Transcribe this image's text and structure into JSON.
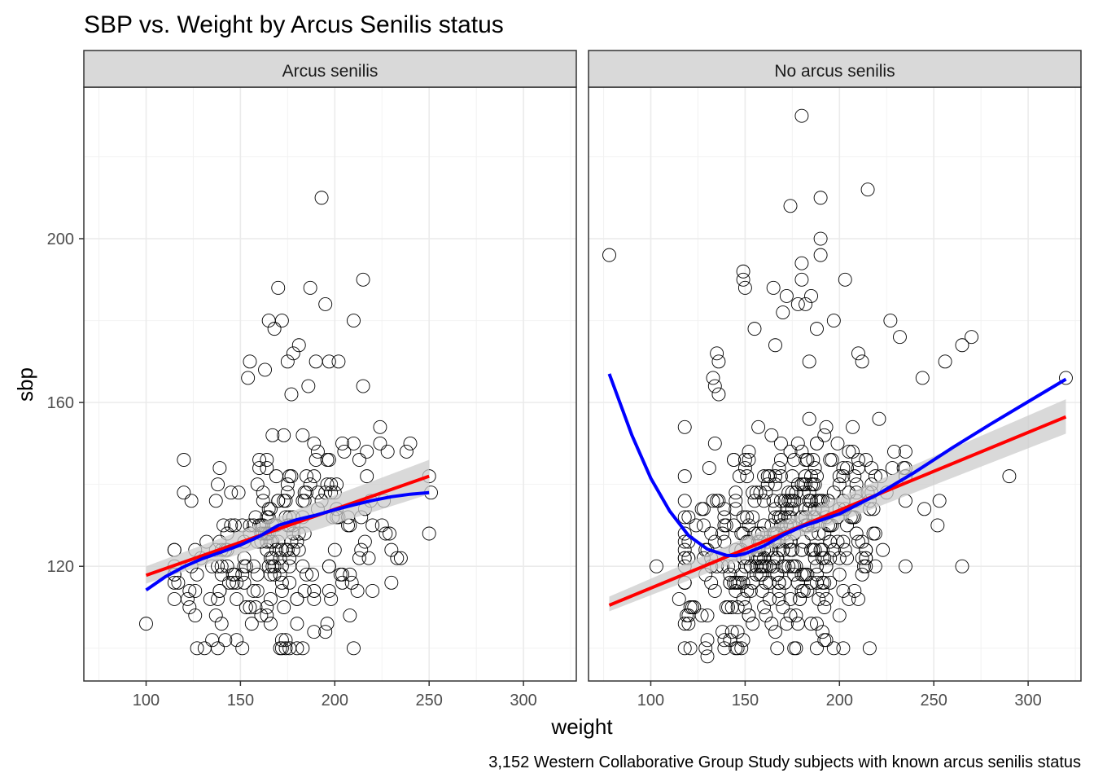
{
  "chart_data": {
    "type": "scatter",
    "title": "SBP vs. Weight by Arcus Senilis status",
    "caption": "3,152 Western Collaborative Group Study subjects with known arcus senilis status",
    "xlabel": "weight",
    "ylabel": "sbp",
    "xlim": [
      67,
      328
    ],
    "ylim": [
      92,
      237
    ],
    "x_ticks": [
      100,
      150,
      200,
      250,
      300
    ],
    "y_ticks": [
      120,
      160,
      200
    ],
    "grid": true,
    "theme": "bw",
    "colors": {
      "lm_line": "#ff0000",
      "loess_line": "#0000ff",
      "confidence_band": "#cccccc",
      "points": "#000000",
      "strip_fill": "#d9d9d9"
    },
    "facets": [
      {
        "label": "Arcus senilis",
        "lm_fit": {
          "x": [
            100,
            250
          ],
          "y": [
            117.8,
            142.0
          ],
          "se_lower": [
            115.8,
            137.6
          ],
          "se_upper": [
            120.0,
            146.0
          ]
        },
        "loess_fit": {
          "x": [
            100,
            110,
            120,
            130,
            140,
            150,
            160,
            170,
            180,
            190,
            200,
            210,
            220,
            230,
            240,
            250
          ],
          "y": [
            114.2,
            117.4,
            119.9,
            121.9,
            123.5,
            125.2,
            127.3,
            130.0,
            131.4,
            132.5,
            133.8,
            135.0,
            136.1,
            137.0,
            137.6,
            138.0
          ]
        },
        "outliers": [
          [
            193,
            210
          ],
          [
            170,
            188
          ],
          [
            187,
            188
          ],
          [
            215,
            190
          ],
          [
            195,
            184
          ],
          [
            210,
            180
          ],
          [
            165,
            180
          ],
          [
            172,
            180
          ],
          [
            168,
            178
          ],
          [
            181,
            174
          ],
          [
            178,
            172
          ],
          [
            155,
            170
          ],
          [
            175,
            170
          ],
          [
            190,
            170
          ],
          [
            197,
            170
          ],
          [
            202,
            170
          ],
          [
            163,
            168
          ],
          [
            154,
            166
          ],
          [
            215,
            164
          ],
          [
            186,
            164
          ],
          [
            177,
            162
          ],
          [
            240,
            150
          ],
          [
            238,
            148
          ],
          [
            224,
            154
          ],
          [
            250,
            142
          ],
          [
            251,
            138
          ],
          [
            250,
            128
          ],
          [
            120,
            146
          ],
          [
            100,
            106
          ],
          [
            127,
            100
          ],
          [
            131,
            100
          ],
          [
            151,
            100
          ],
          [
            176,
            100
          ],
          [
            135,
            102
          ],
          [
            195,
            104
          ],
          [
            235,
            122
          ],
          [
            233,
            122
          ],
          [
            218,
            122
          ],
          [
            225,
            130
          ],
          [
            229,
            128
          ],
          [
            117,
            116
          ],
          [
            123,
            110
          ],
          [
            126,
            108
          ]
        ],
        "cloud": {
          "x_range": [
            115,
            230
          ],
          "y_range": [
            100,
            158
          ],
          "center": [
            170,
            126
          ],
          "n": 230
        }
      },
      {
        "label": "No arcus senilis",
        "lm_fit": {
          "x": [
            78,
            320
          ],
          "y": [
            110.5,
            156.5
          ],
          "se_lower": [
            109.0,
            152.4
          ],
          "se_upper": [
            112.6,
            160.8
          ]
        },
        "loess_fit": {
          "x": [
            78,
            90,
            100,
            110,
            120,
            130,
            140,
            145,
            150,
            160,
            170,
            180,
            200,
            220,
            240,
            260,
            280,
            300,
            320
          ],
          "y": [
            167.0,
            152.0,
            141.5,
            133.5,
            127.5,
            124.2,
            122.7,
            122.6,
            123.1,
            125.0,
            127.6,
            129.7,
            132.8,
            137.5,
            143.0,
            149.0,
            154.7,
            160.2,
            165.7
          ]
        },
        "outliers": [
          [
            180,
            230
          ],
          [
            215,
            212
          ],
          [
            190,
            210
          ],
          [
            174,
            208
          ],
          [
            78,
            196
          ],
          [
            190,
            200
          ],
          [
            190,
            196
          ],
          [
            149,
            192
          ],
          [
            180,
            194
          ],
          [
            203,
            190
          ],
          [
            180,
            190
          ],
          [
            150,
            188
          ],
          [
            149,
            190
          ],
          [
            165,
            188
          ],
          [
            172,
            186
          ],
          [
            185,
            186
          ],
          [
            178,
            184
          ],
          [
            182,
            184
          ],
          [
            170,
            182
          ],
          [
            197,
            180
          ],
          [
            227,
            180
          ],
          [
            155,
            178
          ],
          [
            188,
            178
          ],
          [
            232,
            176
          ],
          [
            270,
            176
          ],
          [
            265,
            174
          ],
          [
            166,
            174
          ],
          [
            210,
            172
          ],
          [
            212,
            170
          ],
          [
            184,
            170
          ],
          [
            256,
            170
          ],
          [
            135,
            172
          ],
          [
            136,
            170
          ],
          [
            134,
            164
          ],
          [
            136,
            162
          ],
          [
            133,
            166
          ],
          [
            244,
            166
          ],
          [
            320,
            166
          ],
          [
            290,
            142
          ],
          [
            265,
            120
          ],
          [
            235,
            120
          ],
          [
            103,
            120
          ],
          [
            130,
            98
          ],
          [
            139,
            100
          ],
          [
            149,
            102
          ],
          [
            177,
            100
          ],
          [
            245,
            134
          ],
          [
            253,
            136
          ],
          [
            252,
            130
          ],
          [
            115,
            112
          ],
          [
            120,
            108
          ]
        ],
        "cloud": {
          "x_range": [
            118,
            235
          ],
          "y_range": [
            100,
            162
          ],
          "center": [
            172,
            126
          ],
          "n": 420
        }
      }
    ]
  }
}
